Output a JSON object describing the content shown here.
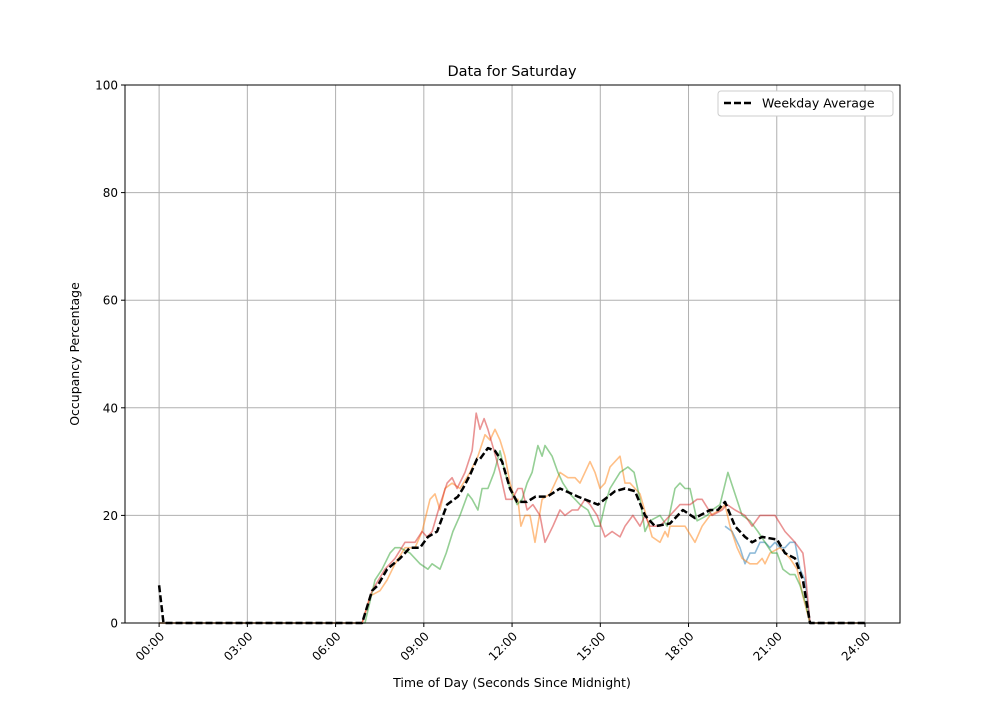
{
  "chart_data": {
    "type": "line",
    "title": "Data for Saturday",
    "xlabel": "Time of Day (Seconds Since Midnight)",
    "ylabel": "Occupancy Percentage",
    "x_unit": "hours",
    "xlim": [
      -1.16,
      25.19
    ],
    "ylim": [
      0,
      100
    ],
    "xticks": [
      0,
      3,
      6,
      9,
      12,
      15,
      18,
      21,
      24
    ],
    "xtick_labels": [
      "00:00",
      "03:00",
      "06:00",
      "09:00",
      "12:00",
      "15:00",
      "18:00",
      "21:00",
      "24:00"
    ],
    "yticks": [
      0,
      20,
      40,
      60,
      80,
      100
    ],
    "ytick_labels": [
      "0",
      "20",
      "40",
      "60",
      "80",
      "100"
    ],
    "grid": true,
    "legend": {
      "placement": "top-right",
      "entries": [
        "Weekday Average"
      ]
    },
    "series": [
      {
        "color": "#1f77b4",
        "alpha": 0.5,
        "style": "solid",
        "points": [
          [
            19.24,
            18
          ],
          [
            19.48,
            17
          ],
          [
            19.75,
            14
          ],
          [
            19.92,
            11
          ],
          [
            20.09,
            13
          ],
          [
            20.26,
            13
          ],
          [
            20.43,
            15
          ],
          [
            20.6,
            15
          ],
          [
            20.77,
            14
          ],
          [
            20.94,
            15
          ],
          [
            21.11,
            14
          ],
          [
            21.28,
            14
          ],
          [
            21.45,
            15
          ],
          [
            21.62,
            15
          ],
          [
            21.79,
            10
          ],
          [
            21.96,
            8
          ],
          [
            22.13,
            0
          ],
          [
            24,
            0
          ]
        ]
      },
      {
        "color": "#ff7f0e",
        "alpha": 0.5,
        "style": "solid",
        "points": [
          [
            0,
            0
          ],
          [
            6.9,
            0
          ],
          [
            7.17,
            5
          ],
          [
            7.51,
            6
          ],
          [
            7.75,
            8
          ],
          [
            8.02,
            11
          ],
          [
            8.36,
            14
          ],
          [
            8.7,
            14
          ],
          [
            8.94,
            17
          ],
          [
            9.21,
            23
          ],
          [
            9.38,
            24
          ],
          [
            9.55,
            21
          ],
          [
            9.72,
            25
          ],
          [
            9.96,
            26
          ],
          [
            10.23,
            25
          ],
          [
            10.57,
            28
          ],
          [
            10.84,
            31
          ],
          [
            11.08,
            35
          ],
          [
            11.25,
            34
          ],
          [
            11.42,
            36
          ],
          [
            11.59,
            34
          ],
          [
            11.76,
            31
          ],
          [
            11.93,
            26
          ],
          [
            12.1,
            23
          ],
          [
            12.2,
            23
          ],
          [
            12.3,
            18
          ],
          [
            12.44,
            20
          ],
          [
            12.61,
            20
          ],
          [
            12.78,
            15
          ],
          [
            13.02,
            23
          ],
          [
            13.29,
            24
          ],
          [
            13.63,
            28
          ],
          [
            13.9,
            27
          ],
          [
            14.14,
            27
          ],
          [
            14.31,
            26
          ],
          [
            14.65,
            30
          ],
          [
            14.82,
            28
          ],
          [
            14.99,
            25
          ],
          [
            15.16,
            26
          ],
          [
            15.33,
            29
          ],
          [
            15.67,
            31
          ],
          [
            15.84,
            26
          ],
          [
            16.01,
            26
          ],
          [
            16.35,
            24
          ],
          [
            16.76,
            16
          ],
          [
            17.03,
            15
          ],
          [
            17.2,
            17
          ],
          [
            17.3,
            16
          ],
          [
            17.37,
            18
          ],
          [
            17.88,
            18
          ],
          [
            18.22,
            15
          ],
          [
            18.46,
            18
          ],
          [
            18.73,
            20
          ],
          [
            19.07,
            21
          ],
          [
            19.24,
            22
          ],
          [
            19.41,
            18
          ],
          [
            19.65,
            14
          ],
          [
            19.82,
            12
          ],
          [
            20.09,
            11
          ],
          [
            20.33,
            11
          ],
          [
            20.5,
            12
          ],
          [
            20.6,
            11
          ],
          [
            20.77,
            13
          ],
          [
            21.11,
            14
          ],
          [
            21.45,
            12
          ],
          [
            21.69,
            10
          ],
          [
            21.89,
            5
          ],
          [
            22.13,
            0
          ],
          [
            24,
            0
          ]
        ]
      },
      {
        "color": "#2ca02c",
        "alpha": 0.5,
        "style": "solid",
        "points": [
          [
            0,
            0
          ],
          [
            7.0,
            0
          ],
          [
            7.34,
            8
          ],
          [
            7.58,
            10
          ],
          [
            7.85,
            13
          ],
          [
            8.02,
            14
          ],
          [
            8.19,
            14
          ],
          [
            8.53,
            13
          ],
          [
            8.87,
            11
          ],
          [
            9.14,
            10
          ],
          [
            9.28,
            11
          ],
          [
            9.55,
            10
          ],
          [
            9.76,
            13
          ],
          [
            9.99,
            17
          ],
          [
            10.23,
            20
          ],
          [
            10.5,
            24
          ],
          [
            10.64,
            23
          ],
          [
            10.84,
            21
          ],
          [
            10.98,
            25
          ],
          [
            11.18,
            25
          ],
          [
            11.39,
            28
          ],
          [
            11.59,
            32
          ],
          [
            11.76,
            28
          ],
          [
            11.93,
            25
          ],
          [
            12.17,
            22
          ],
          [
            12.34,
            23
          ],
          [
            12.51,
            26
          ],
          [
            12.68,
            28
          ],
          [
            12.88,
            33
          ],
          [
            13.02,
            31
          ],
          [
            13.12,
            33
          ],
          [
            13.36,
            31
          ],
          [
            13.56,
            28
          ],
          [
            13.73,
            26
          ],
          [
            13.97,
            24
          ],
          [
            14.31,
            22
          ],
          [
            14.58,
            21
          ],
          [
            14.82,
            18
          ],
          [
            14.99,
            18
          ],
          [
            15.16,
            22
          ],
          [
            15.33,
            25
          ],
          [
            15.67,
            28
          ],
          [
            15.94,
            29
          ],
          [
            16.15,
            28
          ],
          [
            16.35,
            23
          ],
          [
            16.52,
            17
          ],
          [
            16.69,
            19
          ],
          [
            17.03,
            20
          ],
          [
            17.27,
            18
          ],
          [
            17.54,
            25
          ],
          [
            17.71,
            26
          ],
          [
            17.88,
            25
          ],
          [
            18.05,
            25
          ],
          [
            18.29,
            19
          ],
          [
            18.63,
            20
          ],
          [
            18.8,
            21
          ],
          [
            19.07,
            22
          ],
          [
            19.34,
            28
          ],
          [
            19.58,
            24
          ],
          [
            19.82,
            20
          ],
          [
            20.09,
            19
          ],
          [
            20.36,
            17
          ],
          [
            20.6,
            15
          ],
          [
            20.84,
            13
          ],
          [
            21.01,
            13
          ],
          [
            21.21,
            10
          ],
          [
            21.45,
            9
          ],
          [
            21.62,
            9
          ],
          [
            21.79,
            7
          ],
          [
            21.96,
            4
          ],
          [
            22.13,
            0
          ],
          [
            24,
            0
          ]
        ]
      },
      {
        "color": "#d62728",
        "alpha": 0.5,
        "style": "solid",
        "points": [
          [
            0,
            0
          ],
          [
            6.9,
            0
          ],
          [
            7.24,
            6
          ],
          [
            7.68,
            10
          ],
          [
            8.02,
            12
          ],
          [
            8.36,
            15
          ],
          [
            8.7,
            15
          ],
          [
            8.94,
            17
          ],
          [
            9.11,
            16
          ],
          [
            9.28,
            17
          ],
          [
            9.55,
            22
          ],
          [
            9.79,
            26
          ],
          [
            9.96,
            27
          ],
          [
            10.13,
            25
          ],
          [
            10.4,
            28
          ],
          [
            10.64,
            32
          ],
          [
            10.78,
            39
          ],
          [
            10.91,
            36
          ],
          [
            11.05,
            38
          ],
          [
            11.18,
            36
          ],
          [
            11.39,
            32
          ],
          [
            11.59,
            28
          ],
          [
            11.79,
            23
          ],
          [
            12.0,
            23
          ],
          [
            12.2,
            25
          ],
          [
            12.34,
            25
          ],
          [
            12.51,
            21
          ],
          [
            12.71,
            22
          ],
          [
            12.95,
            20
          ],
          [
            13.12,
            15
          ],
          [
            13.39,
            18
          ],
          [
            13.63,
            21
          ],
          [
            13.8,
            20
          ],
          [
            14.04,
            21
          ],
          [
            14.24,
            21
          ],
          [
            14.48,
            23
          ],
          [
            14.65,
            22
          ],
          [
            14.89,
            20
          ],
          [
            15.16,
            16
          ],
          [
            15.4,
            17
          ],
          [
            15.67,
            16
          ],
          [
            15.84,
            18
          ],
          [
            16.11,
            20
          ],
          [
            16.35,
            18
          ],
          [
            16.52,
            20
          ],
          [
            16.69,
            18
          ],
          [
            17.03,
            18
          ],
          [
            17.37,
            20
          ],
          [
            17.71,
            22
          ],
          [
            18.05,
            22
          ],
          [
            18.29,
            23
          ],
          [
            18.46,
            23
          ],
          [
            18.8,
            20
          ],
          [
            19.14,
            21
          ],
          [
            19.31,
            22
          ],
          [
            19.58,
            21
          ],
          [
            19.92,
            20
          ],
          [
            20.16,
            18
          ],
          [
            20.43,
            20
          ],
          [
            20.94,
            20
          ],
          [
            21.28,
            17
          ],
          [
            21.62,
            15
          ],
          [
            21.89,
            13
          ],
          [
            21.96,
            10
          ],
          [
            22.13,
            0
          ],
          [
            24,
            0
          ]
        ]
      },
      {
        "name": "Weekday Average",
        "color": "#000000",
        "alpha": 1,
        "style": "dashed",
        "points": [
          [
            0,
            7
          ],
          [
            0.15,
            0
          ],
          [
            6.9,
            0
          ],
          [
            7.24,
            6
          ],
          [
            7.44,
            7
          ],
          [
            7.75,
            10
          ],
          [
            8.19,
            12
          ],
          [
            8.53,
            14
          ],
          [
            8.87,
            14
          ],
          [
            9.14,
            16
          ],
          [
            9.45,
            17
          ],
          [
            9.79,
            22
          ],
          [
            10.16,
            23.5
          ],
          [
            10.33,
            25
          ],
          [
            10.57,
            27.5
          ],
          [
            10.81,
            30.5
          ],
          [
            10.91,
            30.5
          ],
          [
            11.18,
            32.5
          ],
          [
            11.42,
            32
          ],
          [
            11.66,
            30
          ],
          [
            11.93,
            25
          ],
          [
            12.17,
            22.5
          ],
          [
            12.5,
            22.5
          ],
          [
            12.8,
            23.5
          ],
          [
            13.2,
            23.5
          ],
          [
            13.63,
            25
          ],
          [
            14.24,
            23.5
          ],
          [
            14.92,
            22
          ],
          [
            15.5,
            24.5
          ],
          [
            15.84,
            25
          ],
          [
            16.18,
            24.5
          ],
          [
            16.52,
            20
          ],
          [
            16.86,
            18
          ],
          [
            17.37,
            18.5
          ],
          [
            17.81,
            21
          ],
          [
            18.22,
            19.5
          ],
          [
            18.73,
            21
          ],
          [
            19.0,
            21
          ],
          [
            19.24,
            22.5
          ],
          [
            19.58,
            18
          ],
          [
            19.92,
            16
          ],
          [
            20.16,
            15
          ],
          [
            20.5,
            16
          ],
          [
            21.01,
            15.5
          ],
          [
            21.28,
            13
          ],
          [
            21.62,
            12
          ],
          [
            21.89,
            8
          ],
          [
            22.13,
            0
          ],
          [
            24,
            0
          ]
        ]
      }
    ]
  }
}
